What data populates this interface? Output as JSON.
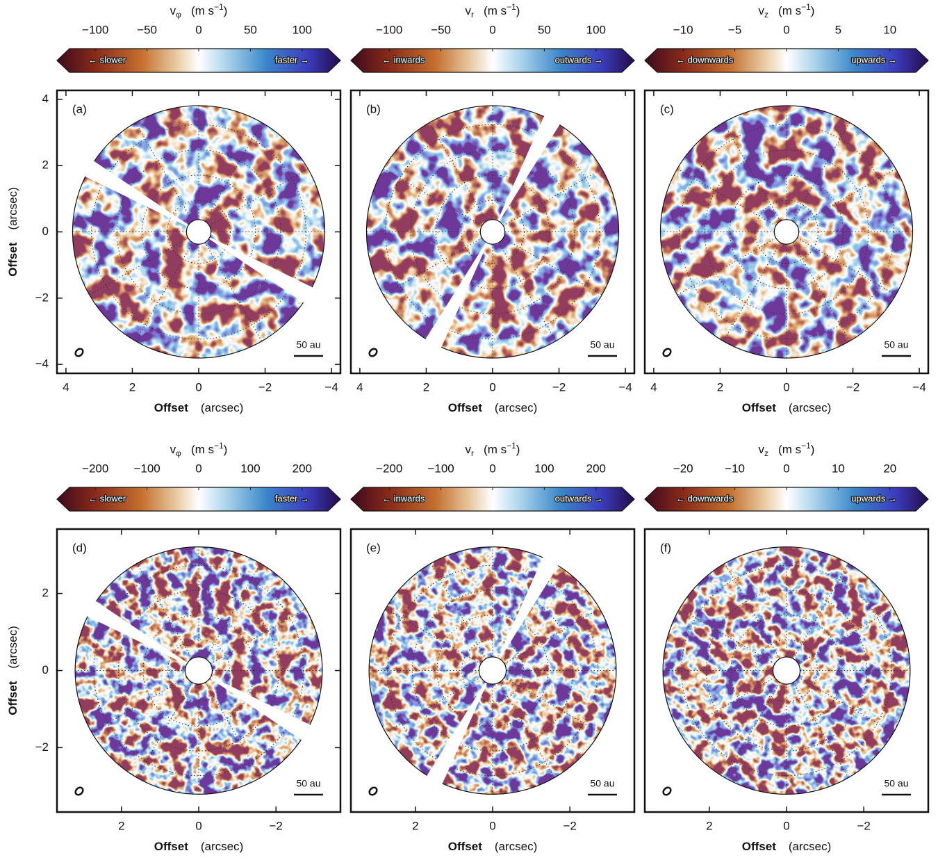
{
  "chart_data": [
    {
      "type": "velocity_map",
      "panel_label": "(a)",
      "quantity": "v",
      "subscript": "φ",
      "unit_parts": [
        "(m s",
        "−1",
        ")"
      ],
      "clim": [
        -125,
        125
      ],
      "cticks": [
        {
          "value": -100,
          "label": "−100"
        },
        {
          "value": -50,
          "label": "−50"
        },
        0,
        50,
        100
      ],
      "left_label": "← slower",
      "right_label": "faster →",
      "xlim": [
        4.27,
        -4.27
      ],
      "xticks": [
        4,
        2,
        0,
        {
          "value": -2,
          "label": "−2"
        },
        {
          "value": -4,
          "label": "−4"
        }
      ],
      "ylim": [
        -4.27,
        4.27
      ],
      "yticks": [
        4,
        2,
        0,
        {
          "value": -2,
          "label": "−2"
        },
        {
          "value": -4,
          "label": "−4"
        }
      ],
      "xlabel": "Offset",
      "xlabel_unit": "(arcsec)",
      "ylabel": "Offset",
      "ylabel_unit": "(arcsec)",
      "scale_bar": "50 au"
    },
    {
      "type": "velocity_map",
      "panel_label": "(b)",
      "quantity": "v",
      "subscript": "r",
      "unit_parts": [
        "(m s",
        "−1",
        ")"
      ],
      "clim": [
        -125,
        125
      ],
      "cticks": [
        {
          "value": -100,
          "label": "−100"
        },
        {
          "value": -50,
          "label": "−50"
        },
        0,
        50,
        100
      ],
      "left_label": "← inwards",
      "right_label": "outwards →",
      "xlim": [
        4.27,
        -4.27
      ],
      "xticks": [
        4,
        2,
        0,
        {
          "value": -2,
          "label": "−2"
        },
        {
          "value": -4,
          "label": "−4"
        }
      ],
      "ylim": [
        -4.27,
        4.27
      ],
      "xlabel": "Offset",
      "xlabel_unit": "(arcsec)",
      "scale_bar": "50 au"
    },
    {
      "type": "velocity_map",
      "panel_label": "(c)",
      "quantity": "v",
      "subscript": "z",
      "unit_parts": [
        "(m s",
        "−1",
        ")"
      ],
      "clim": [
        -12.5,
        12.5
      ],
      "cticks": [
        {
          "value": -10,
          "label": "−10"
        },
        {
          "value": -5,
          "label": "−5"
        },
        0,
        5,
        10
      ],
      "left_label": "← downwards",
      "right_label": "upwards →",
      "xlim": [
        4.27,
        -4.27
      ],
      "xticks": [
        4,
        2,
        0,
        {
          "value": -2,
          "label": "−2"
        },
        {
          "value": -4,
          "label": "−4"
        }
      ],
      "ylim": [
        -4.27,
        4.27
      ],
      "xlabel": "Offset",
      "xlabel_unit": "(arcsec)",
      "scale_bar": "50 au"
    },
    {
      "type": "velocity_map",
      "panel_label": "(d)",
      "quantity": "v",
      "subscript": "φ",
      "unit_parts": [
        "(m s",
        "−1",
        ")"
      ],
      "clim": [
        -250,
        250
      ],
      "cticks": [
        {
          "value": -200,
          "label": "−200"
        },
        {
          "value": -100,
          "label": "−100"
        },
        0,
        100,
        200
      ],
      "left_label": "← slower",
      "right_label": "faster →",
      "xlim": [
        3.67,
        -3.67
      ],
      "xticks": [
        2,
        0,
        {
          "value": -2,
          "label": "−2"
        }
      ],
      "ylim": [
        -3.67,
        3.67
      ],
      "yticks": [
        2,
        0,
        {
          "value": -2,
          "label": "−2"
        }
      ],
      "xlabel": "Offset",
      "xlabel_unit": "(arcsec)",
      "ylabel": "Offset",
      "ylabel_unit": "(arcsec)",
      "scale_bar": "50 au"
    },
    {
      "type": "velocity_map",
      "panel_label": "(e)",
      "quantity": "v",
      "subscript": "r",
      "unit_parts": [
        "(m s",
        "−1",
        ")"
      ],
      "clim": [
        -250,
        250
      ],
      "cticks": [
        {
          "value": -200,
          "label": "−200"
        },
        {
          "value": -100,
          "label": "−100"
        },
        0,
        100,
        200
      ],
      "left_label": "← inwards",
      "right_label": "outwards →",
      "xlim": [
        3.67,
        -3.67
      ],
      "xticks": [
        2,
        0,
        {
          "value": -2,
          "label": "−2"
        }
      ],
      "ylim": [
        -3.67,
        3.67
      ],
      "xlabel": "Offset",
      "xlabel_unit": "(arcsec)",
      "scale_bar": "50 au"
    },
    {
      "type": "velocity_map",
      "panel_label": "(f)",
      "quantity": "v",
      "subscript": "z",
      "unit_parts": [
        "(m s",
        "−1",
        ")"
      ],
      "clim": [
        -25,
        25
      ],
      "cticks": [
        {
          "value": -20,
          "label": "−20"
        },
        {
          "value": -10,
          "label": "−10"
        },
        0,
        10,
        20
      ],
      "left_label": "← downwards",
      "right_label": "upwards →",
      "xlim": [
        3.67,
        -3.67
      ],
      "xticks": [
        2,
        0,
        {
          "value": -2,
          "label": "−2"
        }
      ],
      "ylim": [
        -3.67,
        3.67
      ],
      "xlabel": "Offset",
      "xlabel_unit": "(arcsec)",
      "scale_bar": "50 au"
    }
  ]
}
